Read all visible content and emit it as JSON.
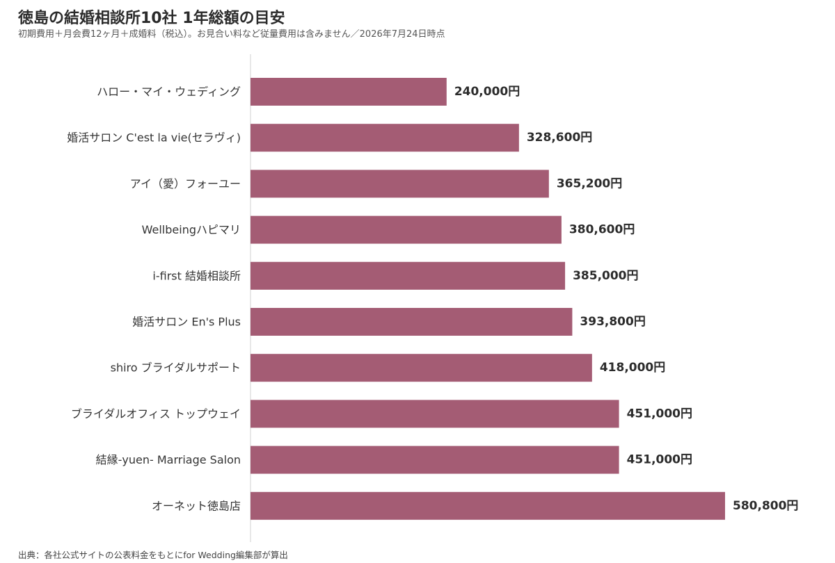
{
  "header": {
    "title": "徳島の結婚相談所10社 1年総額の目安",
    "subtitle": "初期費用＋月会費12ヶ月＋成婚料（税込）。お見合い料など従量費用は含みません／2026年7月24日時点"
  },
  "footer": {
    "source": "出典：各社公式サイトの公表料金をもとにfor Wedding編集部が算出"
  },
  "colors": {
    "bar": "#a45c74",
    "axis": "#d0d0d0",
    "label": "#333333",
    "value": "#2b2b2b"
  },
  "chart_data": {
    "type": "bar",
    "orientation": "horizontal",
    "title": "徳島の結婚相談所10社 1年総額の目安",
    "subtitle": "初期費用＋月会費12ヶ月＋成婚料（税込）。お見合い料など従量費用は含みません／2026年7月24日時点",
    "xlabel": "",
    "ylabel": "",
    "grid": false,
    "legend": "none",
    "categories": [
      "ハロー・マイ・ウェディング",
      "婚活サロン C'est la vie(セラヴィ)",
      "アイ（愛）フォーユー",
      "Wellbeingハピマリ",
      "i-first 結婚相談所",
      "婚活サロン En's Plus",
      "shiro ブライダルサポート",
      "ブライダルオフィス トップウェイ",
      "結縁-yuen- Marriage Salon",
      "オーネット徳島店"
    ],
    "values": [
      240000,
      328600,
      365200,
      380600,
      385000,
      393800,
      418000,
      451000,
      451000,
      580800
    ],
    "value_labels": [
      "240,000円",
      "328,600円",
      "365,200円",
      "380,600円",
      "385,000円",
      "393,800円",
      "418,000円",
      "451,000円",
      "451,000円",
      "580,800円"
    ],
    "xlim": [
      0,
      580800
    ]
  }
}
